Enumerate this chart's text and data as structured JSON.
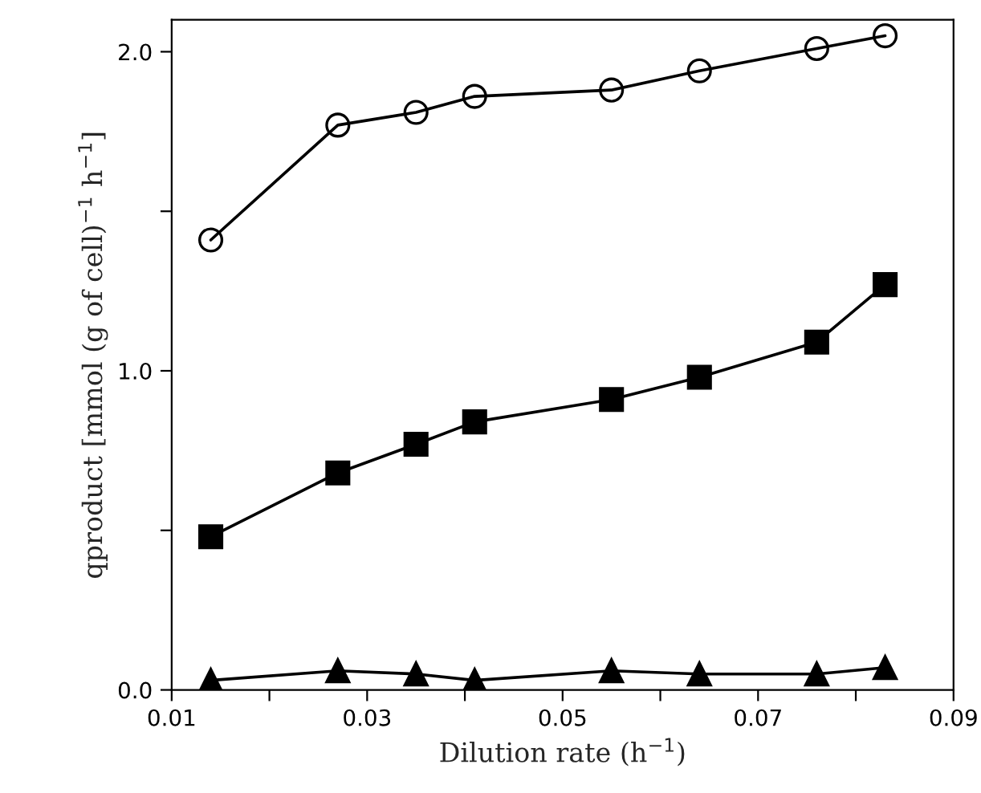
{
  "chart_data": {
    "type": "line",
    "xlabel": "Dilution rate (h$^{−1}$)",
    "ylabel": "qproduct [mmol (g of cell)$^{−1}$ h$^{−1}$]",
    "x": [
      0.014,
      0.027,
      0.035,
      0.041,
      0.055,
      0.064,
      0.076,
      0.083
    ],
    "series": [
      {
        "color": "#000000",
        "marker": "circle",
        "values": [
          1.41,
          1.77,
          1.81,
          1.86,
          1.88,
          1.94,
          2.01,
          2.05
        ]
      },
      {
        "color": "#000000",
        "marker": "square",
        "values": [
          0.48,
          0.68,
          0.77,
          0.84,
          0.91,
          0.98,
          1.09,
          1.27
        ]
      },
      {
        "color": "#000000",
        "marker": "triangle",
        "values": [
          0.03,
          0.06,
          0.05,
          0.03,
          0.06,
          0.05,
          0.05,
          0.07
        ]
      }
    ],
    "xlim": [
      0.01,
      0.09
    ],
    "xticks": [
      0.01,
      {
        "value": 0.02,
        "label": null
      },
      0.03,
      {
        "value": 0.04,
        "label": null
      },
      0.05,
      {
        "value": 0.06,
        "label": null
      },
      0.07,
      {
        "value": 0.08,
        "label": null
      },
      0.09
    ],
    "ylim": [
      0,
      2.1
    ],
    "yticks": [
      {
        "value": 0,
        "label": "0.0"
      },
      {
        "value": 0.5,
        "label": null
      },
      {
        "value": 1,
        "label": "1.0"
      },
      {
        "value": 1.5,
        "label": null
      },
      {
        "value": 2,
        "label": "2.0"
      }
    ],
    "grid": false,
    "legend": false,
    "line_style": "solid"
  }
}
